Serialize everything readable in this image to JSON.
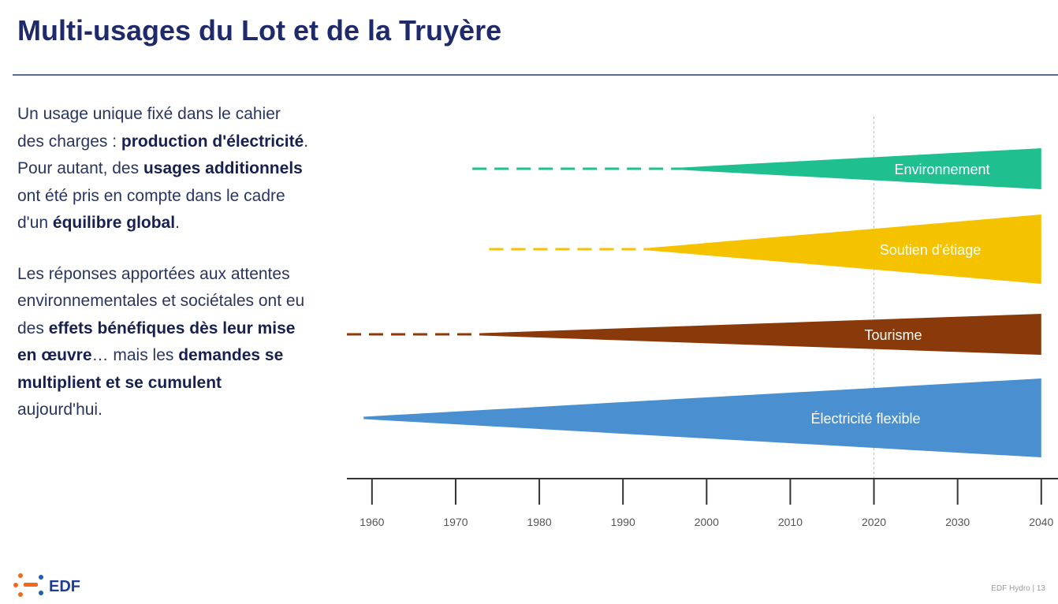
{
  "title": "Multi-usages du Lot et de la Truyère",
  "paragraphs": [
    [
      {
        "text": "Un usage unique fixé dans le cahier des charges : ",
        "bold": false
      },
      {
        "text": "production d'électricité",
        "bold": true
      },
      {
        "text": ". Pour autant, des ",
        "bold": false
      },
      {
        "text": "usages additionnels",
        "bold": true
      },
      {
        "text": " ont été pris en compte dans le cadre d'un ",
        "bold": false
      },
      {
        "text": "équilibre global",
        "bold": true
      },
      {
        "text": ".",
        "bold": false
      }
    ],
    [
      {
        "text": "Les réponses apportées aux attentes environnementales et sociétales ont eu des ",
        "bold": false
      },
      {
        "text": "effets bénéfiques dès leur mise en œuvre",
        "bold": true
      },
      {
        "text": "… mais les ",
        "bold": false
      },
      {
        "text": "demandes se multiplient et se cumulent",
        "bold": true
      },
      {
        "text": " aujourd'hui.",
        "bold": false
      }
    ]
  ],
  "chart_data": {
    "type": "timeline",
    "xlim": [
      1957,
      2042
    ],
    "xticks": [
      1960,
      1970,
      1980,
      1990,
      2000,
      2010,
      2020,
      2030,
      2040
    ],
    "ref_x": 2020,
    "series": [
      {
        "name": "Environnement",
        "color": "#1fbf8f",
        "dash_start": 1972,
        "wedge_start": 1997,
        "end": 2040
      },
      {
        "name": "Soutien d'étiage",
        "color": "#f5c200",
        "dash_start": 1974,
        "wedge_start": 1993,
        "end": 2040
      },
      {
        "name": "Tourisme",
        "color": "#8a3a0a",
        "dash_start": 1957,
        "wedge_start": 1973,
        "end": 2040
      },
      {
        "name": "Électricité flexible",
        "color": "#4a8fd0",
        "dash_start": null,
        "wedge_start": 1959,
        "end": 2040
      }
    ]
  },
  "logo": "EDF",
  "footer": "EDF Hydro | 13"
}
